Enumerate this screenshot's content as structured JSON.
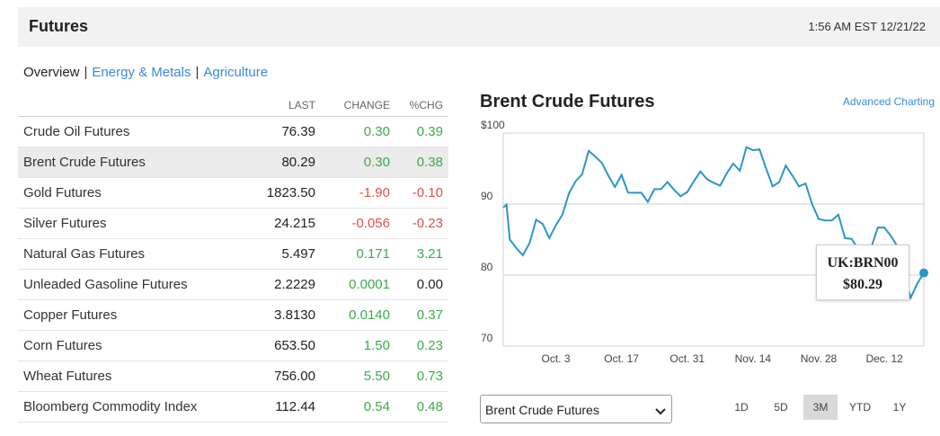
{
  "header": {
    "title": "Futures",
    "timestamp": "1:56 AM EST 12/21/22"
  },
  "tabs": [
    {
      "label": "Overview",
      "active": true
    },
    {
      "label": "Energy & Metals",
      "active": false
    },
    {
      "label": "Agriculture",
      "active": false
    }
  ],
  "table": {
    "columns": {
      "last": "LAST",
      "change": "CHANGE",
      "pct": "%CHG"
    },
    "rows": [
      {
        "name": "Crude Oil Futures",
        "last": "76.39",
        "change": "0.30",
        "pct": "0.39",
        "dir": "pos"
      },
      {
        "name": "Brent Crude Futures",
        "last": "80.29",
        "change": "0.30",
        "pct": "0.38",
        "dir": "pos",
        "selected": true
      },
      {
        "name": "Gold Futures",
        "last": "1823.50",
        "change": "-1.90",
        "pct": "-0.10",
        "dir": "neg"
      },
      {
        "name": "Silver Futures",
        "last": "24.215",
        "change": "-0.056",
        "pct": "-0.23",
        "dir": "neg"
      },
      {
        "name": "Natural Gas Futures",
        "last": "5.497",
        "change": "0.171",
        "pct": "3.21",
        "dir": "pos"
      },
      {
        "name": "Unleaded Gasoline Futures",
        "last": "2.2229",
        "change": "0.0001",
        "pct": "0.00",
        "dir": "pos",
        "pct_dir": "neu"
      },
      {
        "name": "Copper Futures",
        "last": "3.8130",
        "change": "0.0140",
        "pct": "0.37",
        "dir": "pos"
      },
      {
        "name": "Corn Futures",
        "last": "653.50",
        "change": "1.50",
        "pct": "0.23",
        "dir": "pos"
      },
      {
        "name": "Wheat Futures",
        "last": "756.00",
        "change": "5.50",
        "pct": "0.73",
        "dir": "pos"
      },
      {
        "name": "Bloomberg Commodity Index",
        "last": "112.44",
        "change": "0.54",
        "pct": "0.48",
        "dir": "pos"
      }
    ]
  },
  "chart_panel": {
    "title": "Brent Crude Futures",
    "advanced_link": "Advanced Charting",
    "tooltip": {
      "symbol": "UK:BRN00",
      "price": "$80.29"
    },
    "select_value": "Brent Crude Futures",
    "ranges": [
      {
        "label": "1D",
        "active": false
      },
      {
        "label": "5D",
        "active": false
      },
      {
        "label": "3M",
        "active": true
      },
      {
        "label": "YTD",
        "active": false
      },
      {
        "label": "1Y",
        "active": false
      }
    ],
    "line_color": "#2a96c9"
  },
  "chart_data": {
    "type": "line",
    "y_ticks": [
      "$100",
      "90",
      "80",
      "70"
    ],
    "y_tick_values": [
      100,
      90,
      80,
      70
    ],
    "ylim": [
      70,
      100
    ],
    "x_ticks": [
      "Oct. 3",
      "Oct. 17",
      "Oct. 31",
      "Nov. 14",
      "Nov. 28",
      "Dec. 12"
    ],
    "x_tick_positions": [
      8,
      18,
      28,
      38,
      48,
      58
    ],
    "xlim": [
      0,
      64
    ],
    "grid": true,
    "series": [
      {
        "x": [
          0,
          0.5,
          1,
          2,
          3,
          4,
          5,
          6,
          7,
          8,
          9,
          10,
          11,
          12,
          13,
          14,
          15,
          16,
          17,
          18,
          19,
          20,
          21,
          22,
          23,
          24,
          25,
          26,
          27,
          28,
          29,
          30,
          31,
          32,
          33,
          34,
          35,
          36,
          37,
          38,
          39,
          40,
          41,
          42,
          43,
          44,
          45,
          46,
          47,
          48,
          49,
          50,
          51,
          52,
          53,
          54,
          55,
          56,
          57,
          58,
          59,
          60,
          61,
          62,
          63,
          64
        ],
        "y": [
          89.5,
          89.9,
          85.0,
          83.8,
          82.8,
          84.5,
          87.8,
          87.2,
          85.2,
          87.0,
          88.5,
          91.5,
          93.2,
          94.2,
          97.5,
          96.7,
          95.8,
          94.0,
          92.4,
          94.1,
          91.6,
          91.6,
          91.6,
          90.3,
          92.1,
          92.1,
          93.1,
          92.0,
          91.1,
          91.7,
          93.2,
          94.6,
          93.5,
          93.0,
          92.6,
          94.3,
          95.7,
          94.7,
          98.0,
          97.6,
          97.7,
          95.0,
          92.5,
          93.1,
          95.4,
          94.0,
          92.5,
          92.9,
          90.0,
          87.9,
          87.7,
          87.7,
          88.5,
          85.2,
          85.1,
          83.7,
          83.6,
          83.9,
          86.7,
          86.7,
          85.5,
          84.0,
          80.0,
          76.8,
          78.8,
          80.3
        ]
      }
    ]
  }
}
